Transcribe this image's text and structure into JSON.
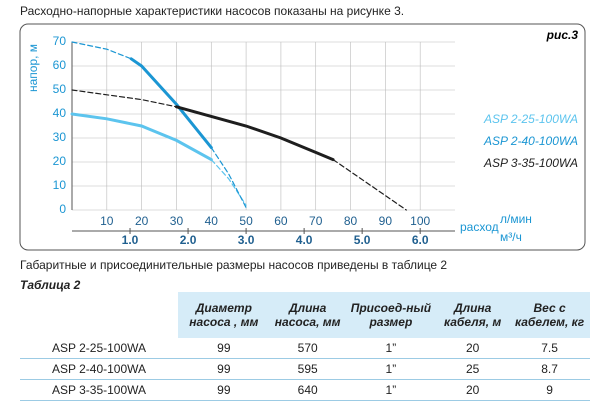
{
  "intro": "Расходно-напорные характеристики насосов показаны на рисунке 3.",
  "chart_data": {
    "type": "line",
    "figure_label": "рис.3",
    "y_label": "напор, м",
    "x_label": "расход",
    "x_unit": "л/мин",
    "x2_unit": "м³/ч",
    "xlim": [
      0,
      110
    ],
    "xticks": [
      10,
      20,
      30,
      40,
      50,
      60,
      70,
      80,
      90,
      100
    ],
    "ylim": [
      0,
      70
    ],
    "yticks": [
      0,
      10,
      20,
      30,
      40,
      50,
      60,
      70
    ],
    "x2lim": [
      0,
      6.6
    ],
    "x2ticks": [
      {
        "value": 1,
        "label": "1.0"
      },
      {
        "value": 2,
        "label": "2.0"
      },
      {
        "value": 3,
        "label": "3.0"
      },
      {
        "value": 4,
        "label": "4.0"
      },
      {
        "value": 5,
        "label": "5.0"
      },
      {
        "value": 6,
        "label": "6.0"
      }
    ],
    "grid": true,
    "series": [
      {
        "name": "ASP 2-25-100WA",
        "color": "#5cc4ee",
        "x": [
          0,
          10,
          20,
          30,
          40,
          45,
          50
        ],
        "values": [
          40,
          38,
          35,
          29,
          21,
          null,
          null
        ],
        "dashed_values": [
          null,
          null,
          null,
          null,
          21,
          13,
          2
        ]
      },
      {
        "name": "ASP 2-40-100WA",
        "color": "#1b96d3",
        "x": [
          0,
          10,
          17,
          20,
          30,
          40,
          45,
          50
        ],
        "values": [
          null,
          null,
          63,
          60,
          44,
          26,
          null,
          null
        ],
        "dashed_values": [
          70,
          67,
          63,
          null,
          null,
          26,
          15,
          1
        ]
      },
      {
        "name": "ASP 3-35-100WA",
        "color": "#1e1e1e",
        "x": [
          0,
          10,
          20,
          30,
          40,
          50,
          60,
          70,
          75,
          85,
          96
        ],
        "values": [
          null,
          null,
          null,
          43,
          39,
          35,
          30,
          24,
          21,
          null,
          null
        ],
        "dashed_values": [
          50,
          48,
          46,
          43,
          null,
          null,
          null,
          null,
          21,
          11,
          0
        ]
      }
    ]
  },
  "caption": "Габаритные и присоединительные размеры насосов приведены в таблице 2",
  "table": {
    "title": "Таблица 2",
    "headers": [
      "Диаметр насоса , мм",
      "Длина насоса, мм",
      "Присоед-ный размер",
      "Длина кабеля, м",
      "Вес с кабелем, кг"
    ],
    "rows": [
      [
        "ASP 2-25-100WA",
        "99",
        "570",
        "1”",
        "20",
        "7.5"
      ],
      [
        "ASP 2-40-100WA",
        "99",
        "595",
        "1”",
        "25",
        "8.7"
      ],
      [
        "ASP 3-35-100WA",
        "99",
        "640",
        "1”",
        "20",
        "9"
      ]
    ]
  }
}
